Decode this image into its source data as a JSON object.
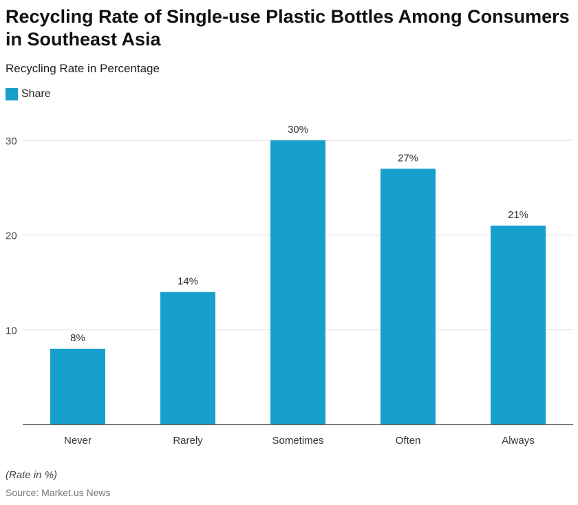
{
  "title": "Recycling Rate of Single-use Plastic Bottles Among Consumers in Southeast Asia",
  "subtitle": "Recycling Rate in Percentage",
  "note": "(Rate in %)",
  "source": "Source: Market.us News",
  "colors": {
    "bar": "#18a0cc",
    "grid": "#d9d9d9",
    "axis": "#333333"
  },
  "chart_data": {
    "type": "bar",
    "title": "Recycling Rate of Single-use Plastic Bottles Among Consumers in Southeast Asia",
    "subtitle": "Recycling Rate in Percentage",
    "categories": [
      "Never",
      "Rarely",
      "Sometimes",
      "Often",
      "Always"
    ],
    "series": [
      {
        "name": "Share",
        "values": [
          8,
          14,
          30,
          27,
          21
        ]
      }
    ],
    "data_labels": [
      "8%",
      "14%",
      "30%",
      "27%",
      "21%"
    ],
    "yticks": [
      10,
      20,
      30
    ],
    "ylim": [
      0,
      30
    ],
    "grid": true,
    "legend": "top-left"
  }
}
